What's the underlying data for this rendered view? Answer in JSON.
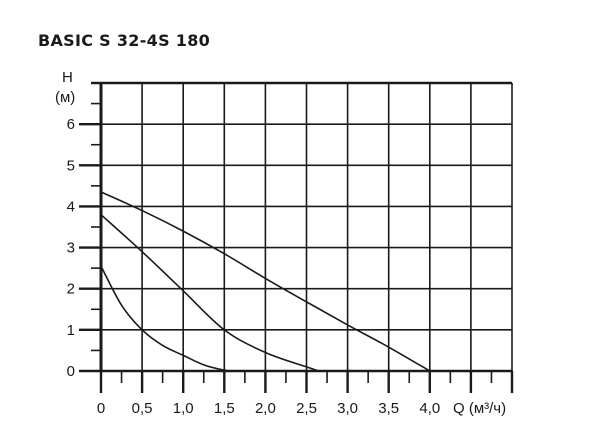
{
  "chart_data": {
    "type": "line",
    "title": "BASIC S 32-4S 180",
    "ylabel_line1": "H",
    "ylabel_line2": "(м)",
    "xlabel": "Q (м³/ч)",
    "xlim": [
      0,
      5.0
    ],
    "ylim": [
      0,
      7
    ],
    "grid": true,
    "x_ticks": [
      "0",
      "0,5",
      "1,0",
      "1,5",
      "2,0",
      "2,5",
      "3,0",
      "3,5",
      "4,0"
    ],
    "x_tick_values": [
      0,
      0.5,
      1.0,
      1.5,
      2.0,
      2.5,
      3.0,
      3.5,
      4.0
    ],
    "y_ticks": [
      "0",
      "1",
      "2",
      "3",
      "4",
      "5",
      "6"
    ],
    "y_tick_values": [
      0,
      1,
      2,
      3,
      4,
      5,
      6
    ],
    "line_color": "#1a1a1a",
    "series": [
      {
        "points": [
          [
            0,
            4.35
          ],
          [
            0.5,
            3.9
          ],
          [
            1.0,
            3.4
          ],
          [
            1.5,
            2.85
          ],
          [
            2.0,
            2.25
          ],
          [
            2.5,
            1.68
          ],
          [
            3.0,
            1.12
          ],
          [
            3.5,
            0.58
          ],
          [
            4.0,
            0
          ]
        ]
      },
      {
        "points": [
          [
            0,
            3.8
          ],
          [
            0.5,
            2.9
          ],
          [
            1.0,
            1.95
          ],
          [
            1.5,
            1.0
          ],
          [
            2.0,
            0.45
          ],
          [
            2.5,
            0.1
          ],
          [
            2.65,
            0
          ]
        ]
      },
      {
        "points": [
          [
            0,
            2.55
          ],
          [
            0.25,
            1.6
          ],
          [
            0.5,
            1.0
          ],
          [
            0.75,
            0.62
          ],
          [
            1.0,
            0.38
          ],
          [
            1.25,
            0.15
          ],
          [
            1.5,
            0.02
          ],
          [
            1.6,
            0
          ]
        ]
      }
    ]
  }
}
